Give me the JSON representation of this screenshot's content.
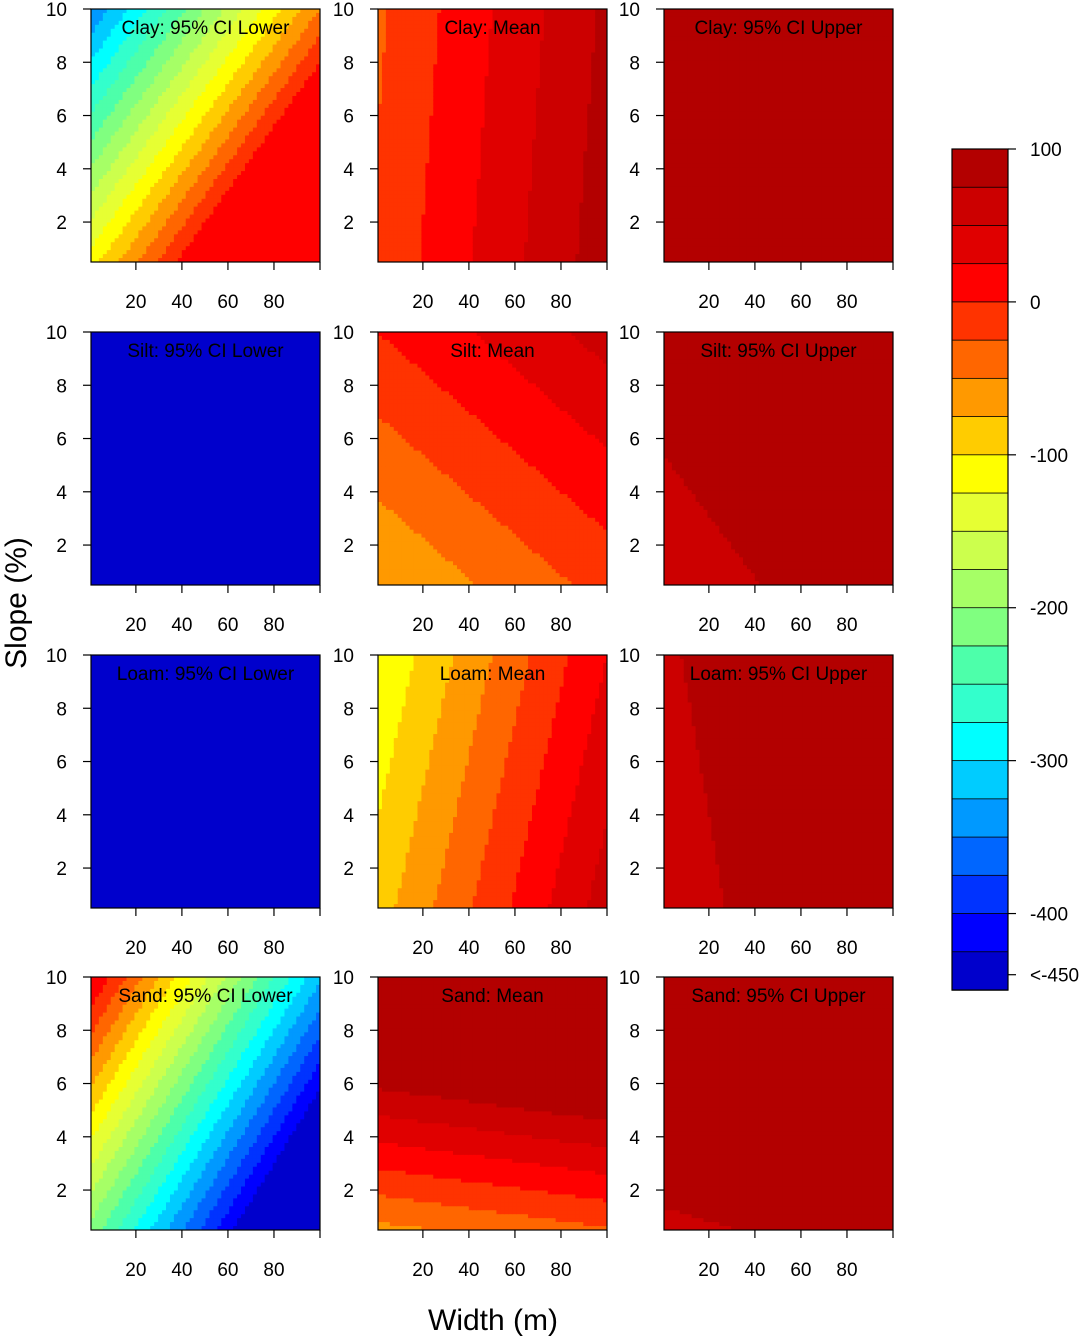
{
  "chart_data": {
    "type": "heatmap",
    "x_label": "Width (m)",
    "y_label": "Slope (%)",
    "x_ticks": [
      20,
      40,
      60,
      80
    ],
    "y_ticks": [
      2,
      4,
      6,
      8,
      10
    ],
    "xlim": [
      0.5,
      100
    ],
    "ylim": [
      0.5,
      10
    ],
    "colorbar": {
      "levels": [
        100,
        75,
        50,
        25,
        0,
        -25,
        -50,
        -75,
        -100,
        -125,
        -150,
        -175,
        -200,
        -225,
        -250,
        -275,
        -300,
        -325,
        -350,
        -375,
        -400,
        -425,
        -450
      ],
      "colors": [
        "#b30000",
        "#cc0000",
        "#e00000",
        "#ff0000",
        "#ff3300",
        "#ff6600",
        "#ff9900",
        "#ffcc00",
        "#ffff00",
        "#e6ff33",
        "#ccff4d",
        "#a6ff66",
        "#80ff80",
        "#4dffaa",
        "#33ffcc",
        "#00ffff",
        "#00ccff",
        "#0099ff",
        "#0066ff",
        "#0033ff",
        "#0000ff",
        "#0000cc"
      ],
      "tick_labels": [
        "100",
        "0",
        "-100",
        "-200",
        "-300",
        "-400",
        "<-450"
      ]
    },
    "panels": [
      {
        "title": "Clay: 95% CI Lower",
        "soil": "Clay",
        "stat": "lower",
        "model": {
          "a": -100,
          "bx": 3.0,
          "by": -25,
          "min": -460,
          "max": 20
        }
      },
      {
        "title": "Clay: Mean",
        "soil": "Clay",
        "stat": "mean",
        "model": {
          "a": -20,
          "bx": 1.1,
          "by": -1.0,
          "min": -60,
          "max": 100
        }
      },
      {
        "title": "Clay: 95% CI Upper",
        "soil": "Clay",
        "stat": "upper",
        "model": {
          "a": 80,
          "bx": 0.8,
          "by": 4.0,
          "min": 75,
          "max": 100
        }
      },
      {
        "title": "Silt: 95% CI Lower",
        "soil": "Silt",
        "stat": "lower",
        "model": {
          "a": -500,
          "bx": 0,
          "by": 0,
          "min": -500,
          "max": -450
        }
      },
      {
        "title": "Silt: Mean",
        "soil": "Silt",
        "stat": "mean",
        "model": {
          "a": -80,
          "bx": 0.6,
          "by": 8.0,
          "min": -100,
          "max": 60
        }
      },
      {
        "title": "Silt: 95% CI Upper",
        "soil": "Silt",
        "stat": "upper",
        "model": {
          "a": 68,
          "bx": 0.15,
          "by": 1.3,
          "min": 70,
          "max": 100
        }
      },
      {
        "title": "Loam: 95% CI Lower",
        "soil": "Loam",
        "stat": "lower",
        "model": {
          "a": -500,
          "bx": 0,
          "by": 0,
          "min": -500,
          "max": -450
        }
      },
      {
        "title": "Loam: Mean",
        "soil": "Loam",
        "stat": "mean",
        "model": {
          "a": -85,
          "bx": 1.5,
          "by": -4.0,
          "min": -150,
          "max": 70
        }
      },
      {
        "title": "Loam: 95% CI Upper",
        "soil": "Loam",
        "stat": "upper",
        "model": {
          "a": 71.5,
          "bx": 0.125,
          "by": 0.25,
          "min": 70,
          "max": 100
        }
      },
      {
        "title": "Sand: 95% CI Lower",
        "soil": "Sand",
        "stat": "lower",
        "model": {
          "a": -220,
          "bx": -3.5,
          "by": 25,
          "min": -460,
          "max": 20
        }
      },
      {
        "title": "Sand: Mean",
        "soil": "Sand",
        "stat": "mean",
        "model": {
          "a": -70,
          "bx": 0.3,
          "by": 25,
          "min": -100,
          "max": 100
        }
      },
      {
        "title": "Sand: 95% CI Upper",
        "soil": "Sand",
        "stat": "upper",
        "model": {
          "a": 67,
          "bx": 0.15,
          "by": 6.0,
          "min": 70,
          "max": 100
        }
      }
    ]
  }
}
